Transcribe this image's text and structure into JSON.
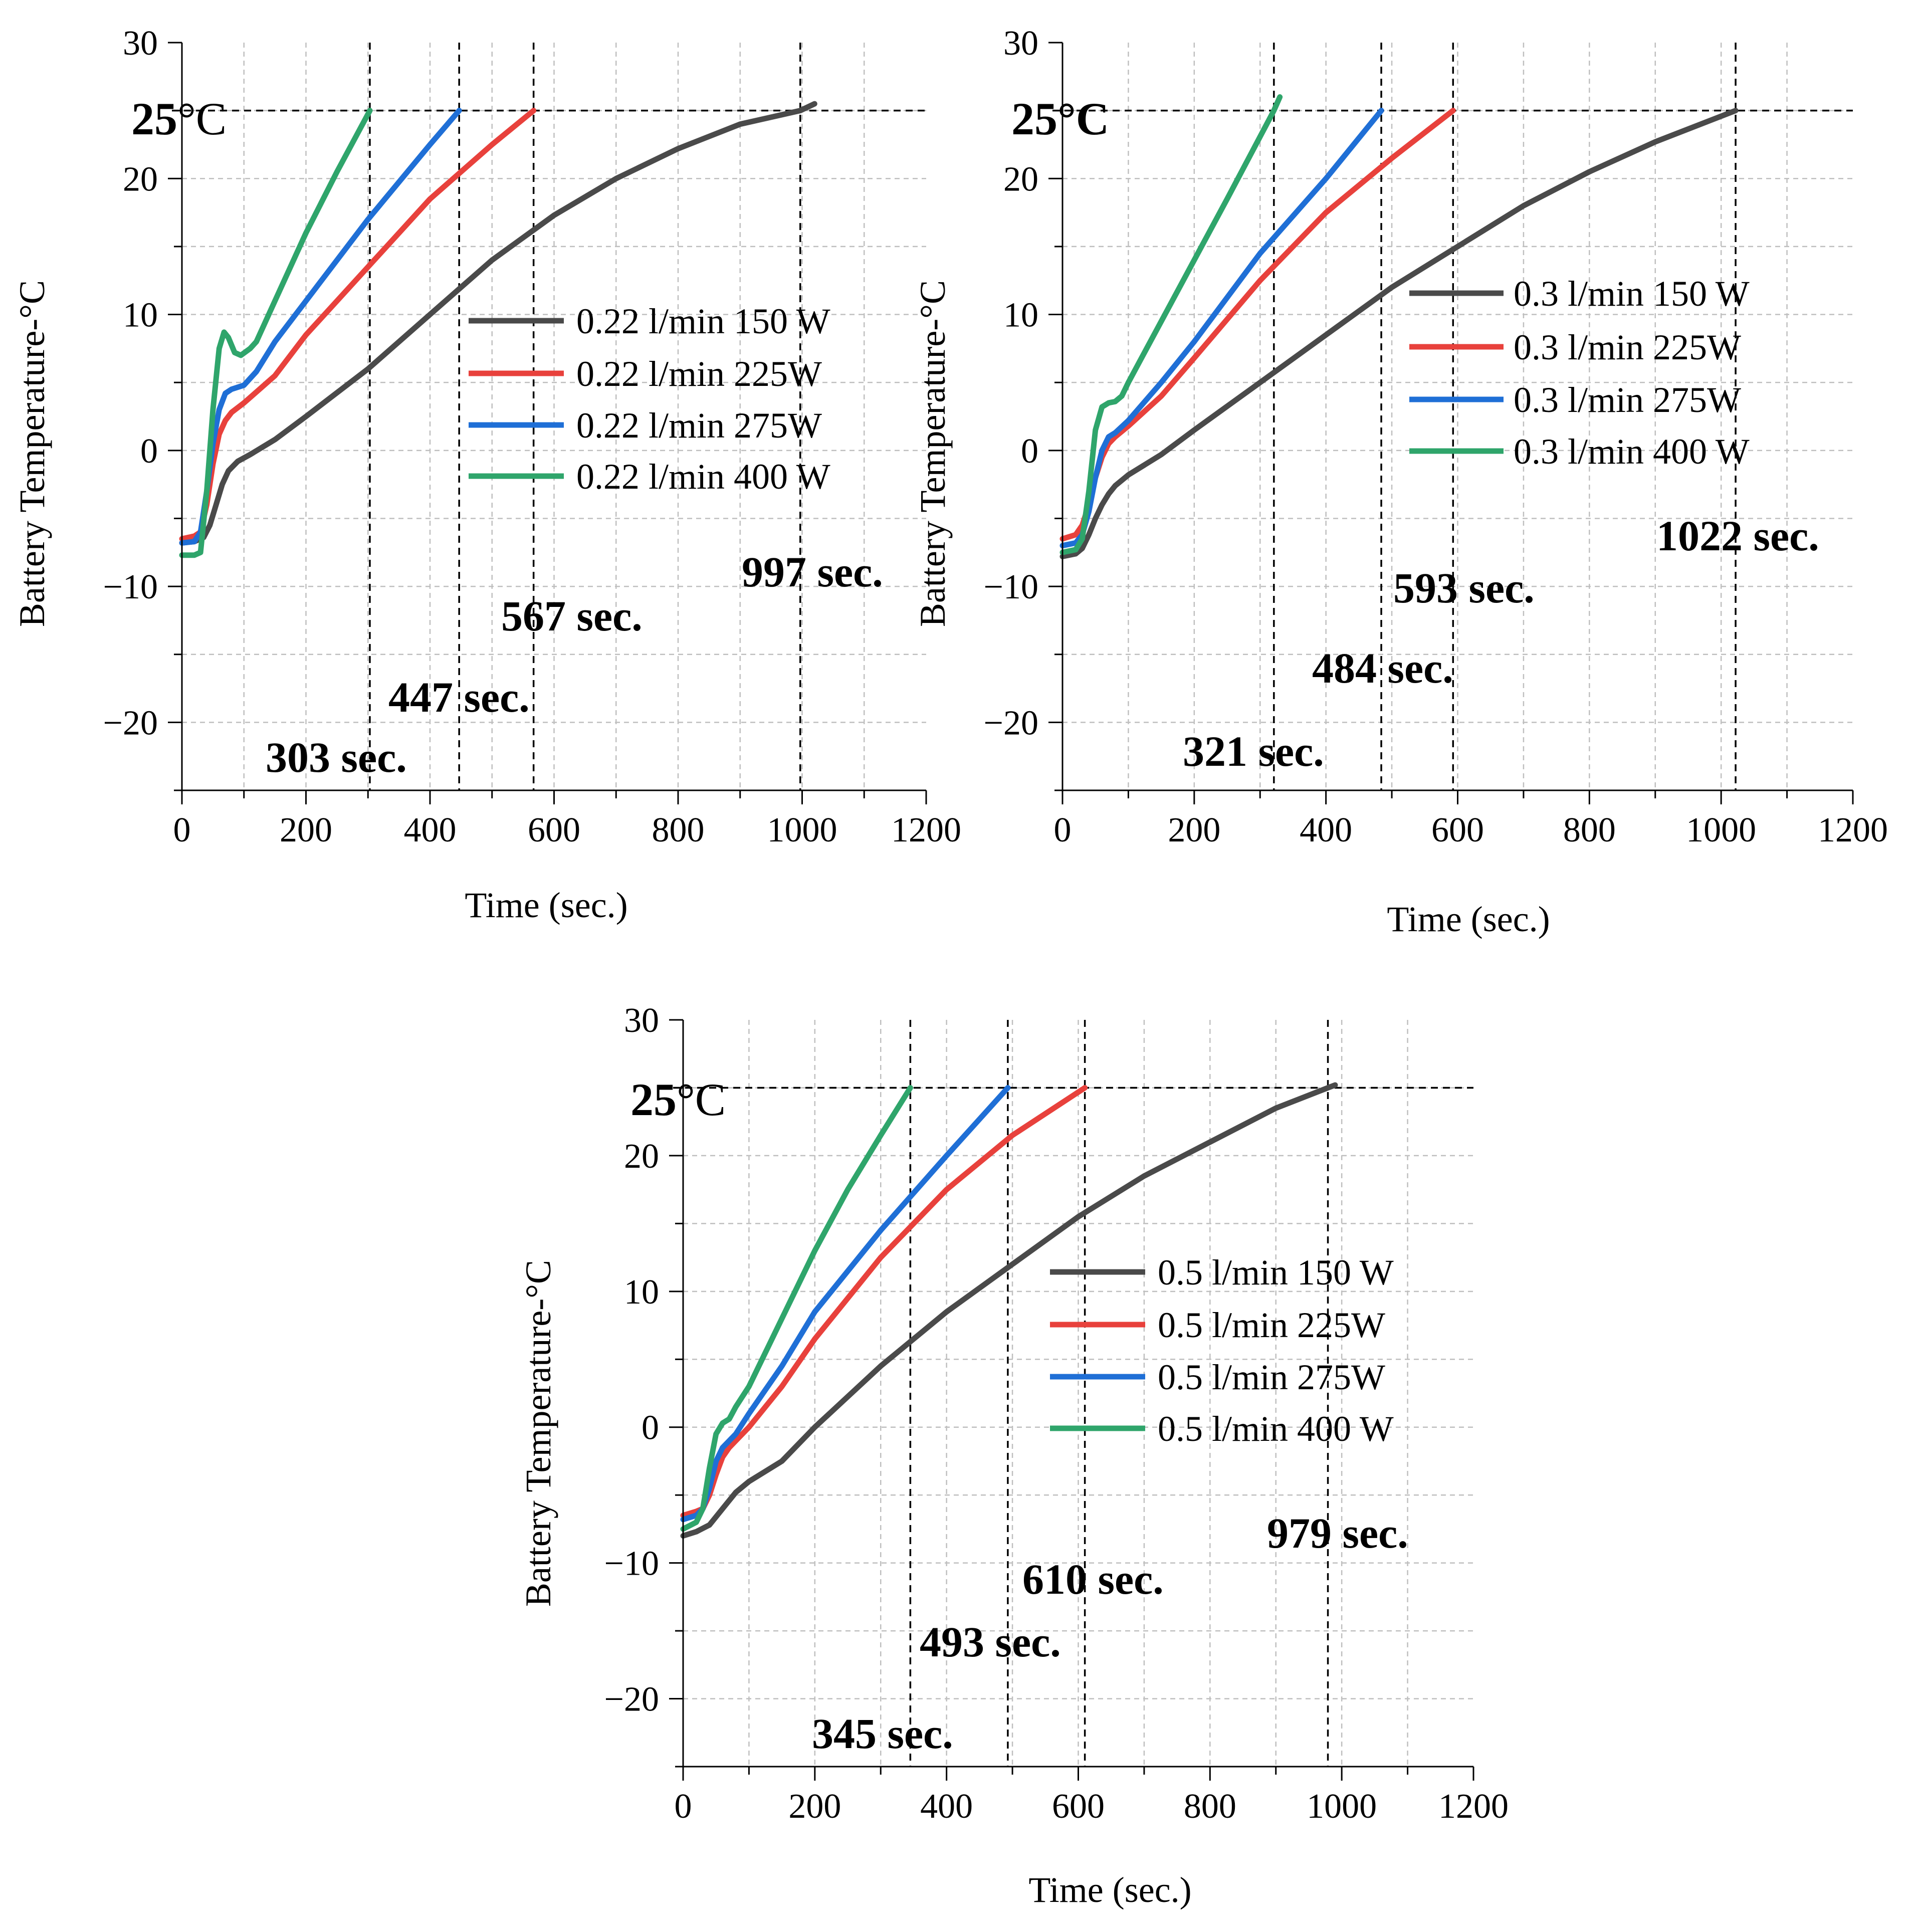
{
  "colors": {
    "s150": "#4a4a4a",
    "s225": "#e8413c",
    "s275": "#1f6fd6",
    "s400": "#2fa56b"
  },
  "chart_data": [
    {
      "type": "line",
      "xlabel": "Time (sec.)",
      "ylabel": "Battery Temperature-°C",
      "xlim": [
        0,
        1200
      ],
      "ylim": [
        -25,
        30
      ],
      "xticks": [
        "0",
        "200",
        "400",
        "600",
        "800",
        "1000",
        "1200"
      ],
      "yticks": [
        "−20",
        "−10",
        "0",
        "10",
        "20",
        "30"
      ],
      "reference_temp": 25,
      "reference_label": {
        "bold": "25",
        "normal": "°C"
      },
      "legend_position": "center-right",
      "series": [
        {
          "name": "0.22 l/min 150 W",
          "color_key": "s150",
          "end_time": 997,
          "x": [
            0,
            20,
            35,
            45,
            55,
            65,
            75,
            90,
            110,
            150,
            200,
            300,
            400,
            500,
            600,
            700,
            800,
            900,
            997,
            1020
          ],
          "y": [
            -6.8,
            -6.7,
            -6.4,
            -5.5,
            -4.0,
            -2.5,
            -1.5,
            -0.8,
            -0.3,
            0.8,
            2.5,
            6.0,
            10.0,
            14.0,
            17.3,
            20.0,
            22.2,
            24.0,
            25.0,
            25.5
          ]
        },
        {
          "name": "0.22 l/min 225W",
          "color_key": "s225",
          "end_time": 567,
          "x": [
            0,
            20,
            30,
            40,
            50,
            60,
            70,
            80,
            100,
            150,
            200,
            300,
            400,
            500,
            567
          ],
          "y": [
            -6.5,
            -6.3,
            -6.0,
            -4.0,
            -1.0,
            1.2,
            2.2,
            2.8,
            3.5,
            5.5,
            8.5,
            13.5,
            18.5,
            22.5,
            25.0
          ]
        },
        {
          "name": "0.22 l/min 275W",
          "color_key": "s275",
          "end_time": 447,
          "x": [
            0,
            20,
            30,
            40,
            50,
            60,
            70,
            80,
            100,
            120,
            150,
            200,
            300,
            400,
            447
          ],
          "y": [
            -6.8,
            -6.7,
            -6.0,
            -3.0,
            0.5,
            3.0,
            4.2,
            4.5,
            4.8,
            5.8,
            8.0,
            11.0,
            17.0,
            22.5,
            25.0
          ]
        },
        {
          "name": "0.22 l/min 400 W",
          "color_key": "s400",
          "end_time": 303,
          "x": [
            0,
            20,
            30,
            40,
            50,
            60,
            68,
            75,
            85,
            95,
            110,
            120,
            150,
            200,
            250,
            303
          ],
          "y": [
            -7.7,
            -7.7,
            -7.5,
            -3.0,
            3.0,
            7.5,
            8.7,
            8.3,
            7.2,
            7.0,
            7.5,
            8.0,
            11.0,
            16.0,
            20.5,
            25.0
          ]
        }
      ],
      "annotations": [
        "303 sec.",
        "447 sec.",
        "567 sec.",
        "997 sec."
      ]
    },
    {
      "type": "line",
      "xlabel": "Time (sec.)",
      "ylabel": "Battery Temperature-°C",
      "xlim": [
        0,
        1200
      ],
      "ylim": [
        -25,
        30
      ],
      "xticks": [
        "0",
        "200",
        "400",
        "600",
        "800",
        "1000",
        "1200"
      ],
      "yticks": [
        "−20",
        "−10",
        "0",
        "10",
        "20",
        "30"
      ],
      "reference_temp": 25,
      "reference_label": {
        "bold": "25°C",
        "normal": ""
      },
      "legend_position": "center-right",
      "series": [
        {
          "name": "0.3 l/min 150 W",
          "color_key": "s150",
          "end_time": 1022,
          "x": [
            0,
            20,
            30,
            40,
            50,
            60,
            70,
            80,
            100,
            150,
            200,
            300,
            400,
            500,
            600,
            700,
            800,
            900,
            1022
          ],
          "y": [
            -7.8,
            -7.6,
            -7.2,
            -6.2,
            -5.0,
            -4.0,
            -3.2,
            -2.6,
            -1.8,
            -0.3,
            1.5,
            5.0,
            8.5,
            12.0,
            15.0,
            18.0,
            20.5,
            22.7,
            25.0
          ]
        },
        {
          "name": "0.3 l/min 225W",
          "color_key": "s225",
          "end_time": 593,
          "x": [
            0,
            20,
            30,
            40,
            50,
            60,
            70,
            80,
            100,
            150,
            200,
            300,
            400,
            500,
            593
          ],
          "y": [
            -6.5,
            -6.2,
            -5.5,
            -4.0,
            -2.0,
            -0.5,
            0.5,
            1.0,
            1.8,
            4.0,
            6.8,
            12.5,
            17.5,
            21.5,
            25.0
          ]
        },
        {
          "name": "0.3 l/min 275W",
          "color_key": "s275",
          "end_time": 484,
          "x": [
            0,
            20,
            30,
            40,
            50,
            60,
            70,
            80,
            100,
            150,
            200,
            300,
            400,
            484
          ],
          "y": [
            -7.0,
            -6.8,
            -6.2,
            -4.5,
            -2.0,
            0.0,
            1.0,
            1.3,
            2.2,
            5.0,
            8.0,
            14.5,
            20.0,
            25.0
          ]
        },
        {
          "name": "0.3 l/min 400 W",
          "color_key": "s400",
          "end_time": 321,
          "x": [
            0,
            20,
            30,
            40,
            50,
            60,
            70,
            80,
            90,
            100,
            150,
            200,
            250,
            321,
            330
          ],
          "y": [
            -7.5,
            -7.3,
            -6.5,
            -3.0,
            1.5,
            3.2,
            3.5,
            3.6,
            4.0,
            5.0,
            9.5,
            14.0,
            18.5,
            25.0,
            26.0
          ]
        }
      ],
      "annotations": [
        "321 sec.",
        "484 sec.",
        "593 sec.",
        "1022 sec."
      ]
    },
    {
      "type": "line",
      "xlabel": "Time (sec.)",
      "ylabel": "Battery Temperature-°C",
      "xlim": [
        0,
        1200
      ],
      "ylim": [
        -25,
        30
      ],
      "xticks": [
        "0",
        "200",
        "400",
        "600",
        "800",
        "1000",
        "1200"
      ],
      "yticks": [
        "−20",
        "−10",
        "0",
        "10",
        "20",
        "30"
      ],
      "reference_temp": 25,
      "reference_label": {
        "bold": "25",
        "normal": "°C"
      },
      "legend_position": "center-right",
      "series": [
        {
          "name": "0.5 l/min 150 W",
          "color_key": "s150",
          "end_time": 979,
          "x": [
            0,
            20,
            40,
            60,
            80,
            100,
            150,
            200,
            300,
            400,
            500,
            600,
            700,
            800,
            900,
            979,
            990
          ],
          "y": [
            -8.0,
            -7.7,
            -7.2,
            -6.0,
            -4.8,
            -4.0,
            -2.5,
            0.0,
            4.5,
            8.5,
            12.0,
            15.5,
            18.5,
            21.0,
            23.5,
            25.0,
            25.2
          ]
        },
        {
          "name": "0.5 l/min 225W",
          "color_key": "s225",
          "end_time": 610,
          "x": [
            0,
            20,
            30,
            40,
            50,
            60,
            70,
            80,
            100,
            150,
            200,
            300,
            400,
            500,
            610
          ],
          "y": [
            -6.5,
            -6.2,
            -6.0,
            -5.0,
            -3.5,
            -2.2,
            -1.5,
            -1.0,
            0.0,
            3.0,
            6.5,
            12.5,
            17.5,
            21.5,
            25.0
          ]
        },
        {
          "name": "0.5 l/min 275W",
          "color_key": "s275",
          "end_time": 493,
          "x": [
            0,
            20,
            30,
            40,
            50,
            60,
            70,
            80,
            100,
            150,
            200,
            300,
            400,
            493
          ],
          "y": [
            -6.8,
            -6.5,
            -6.0,
            -4.5,
            -2.5,
            -1.5,
            -1.0,
            -0.5,
            1.0,
            4.5,
            8.5,
            14.5,
            20.0,
            25.0
          ]
        },
        {
          "name": "0.5 l/min 400 W",
          "color_key": "s400",
          "end_time": 345,
          "x": [
            0,
            20,
            30,
            40,
            50,
            60,
            70,
            80,
            100,
            150,
            200,
            250,
            300,
            345
          ],
          "y": [
            -7.5,
            -7.0,
            -6.0,
            -3.0,
            -0.5,
            0.3,
            0.6,
            1.5,
            3.0,
            8.0,
            13.0,
            17.5,
            21.5,
            25.0
          ]
        }
      ],
      "annotations": [
        "345 sec.",
        "493 sec.",
        "610 sec.",
        "979 sec."
      ]
    }
  ]
}
